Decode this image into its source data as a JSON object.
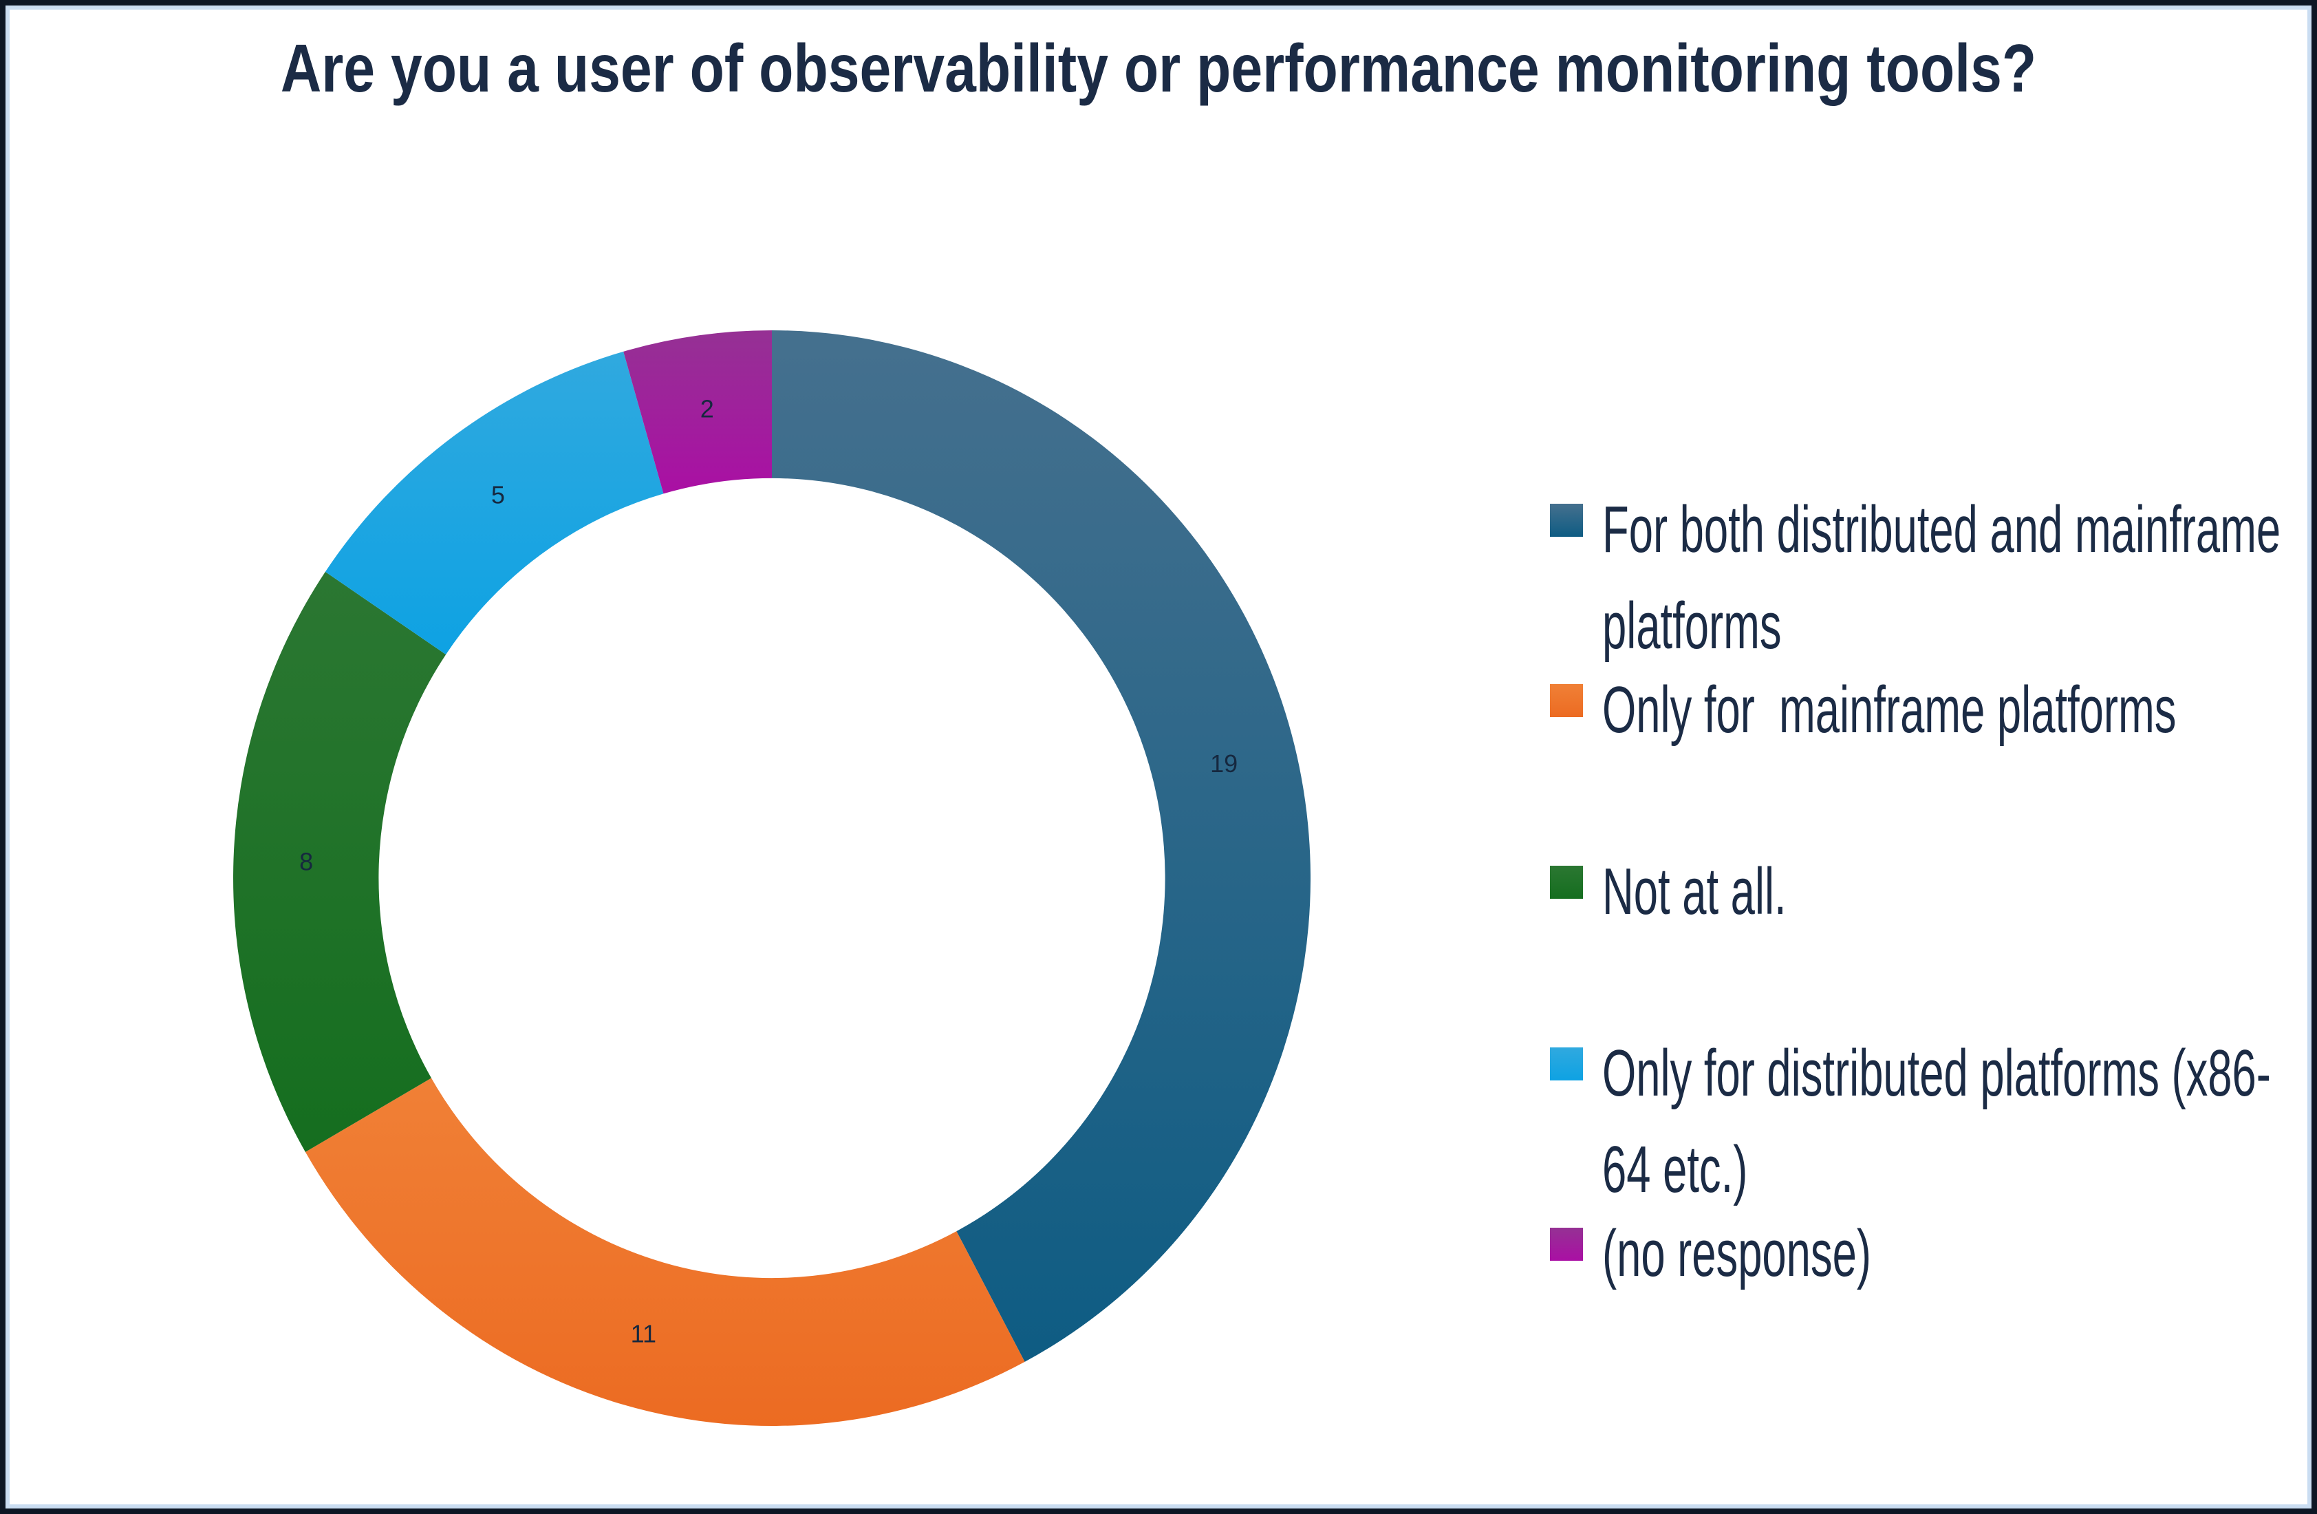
{
  "title": {
    "text": "Are you a user of observability or performance monitoring tools?",
    "color": "#1b2b45"
  },
  "chart_data": {
    "type": "pie",
    "subtype": "donut",
    "title": "Are you a user of observability or performance monitoring tools?",
    "categories": [
      "For both distributed and mainframe platforms",
      "Only for  mainframe platforms",
      "Not at all.",
      "Only for distributed platforms (x86-64 etc.)",
      "(no response)"
    ],
    "values": [
      19,
      11,
      8,
      5,
      2
    ],
    "total": 45,
    "start_angle_deg": 0,
    "direction": "clockwise",
    "hole_ratio": 0.73,
    "legend_position": "right",
    "data_labels_shown": true,
    "data_label_color": "#16283f",
    "slices": [
      {
        "label": "For both distributed and mainframe platforms",
        "value": 19,
        "color_light": "#45708e",
        "color_dark": "#0e5c83"
      },
      {
        "label": "Only for  mainframe platforms",
        "value": 11,
        "color_light": "#f08036",
        "color_dark": "#ec6b22"
      },
      {
        "label": "Not at all.",
        "value": 8,
        "color_light": "#2b7732",
        "color_dark": "#156e1f"
      },
      {
        "label": "Only for distributed platforms (x86-64 etc.)",
        "value": 5,
        "color_light": "#30a9df",
        "color_dark": "#0ea2e3"
      },
      {
        "label": "(no response)",
        "value": 2,
        "color_light": "#953194",
        "color_dark": "#aa0fa4"
      }
    ]
  },
  "frame": {
    "outer_border_color": "#0d1624",
    "inner_border_color": "#caddf2"
  }
}
